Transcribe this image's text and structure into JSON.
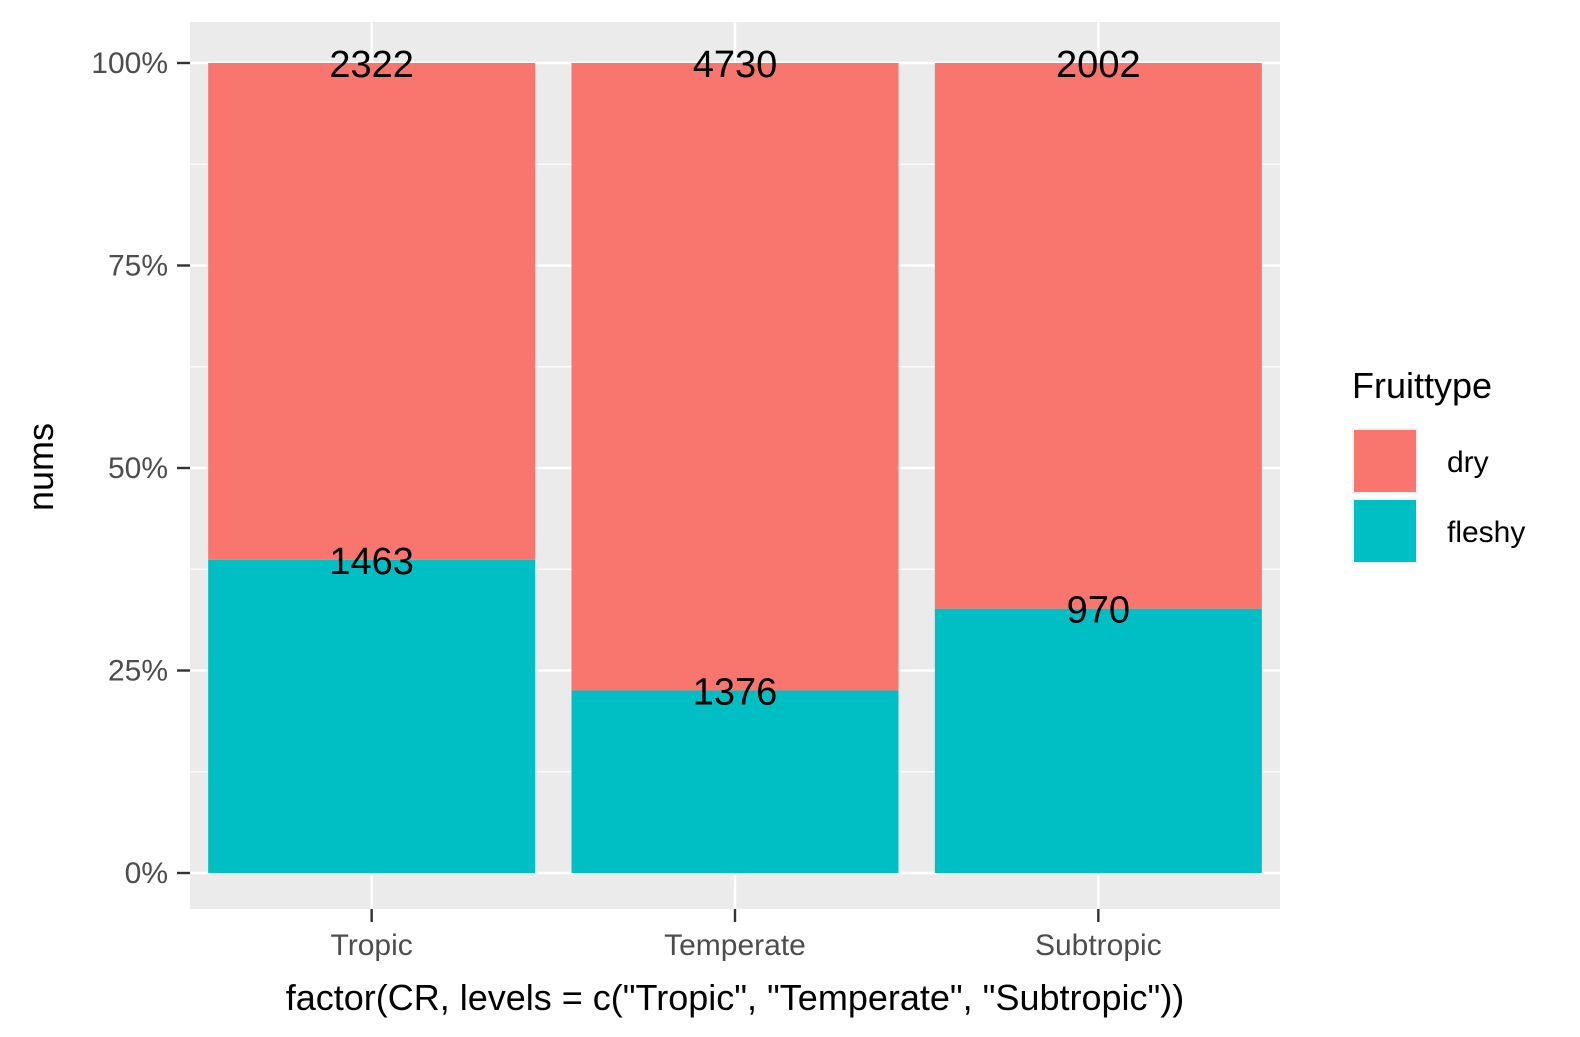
{
  "chart_data": {
    "type": "bar",
    "stacking": "percent",
    "categories": [
      "Tropic",
      "Temperate",
      "Subtropic"
    ],
    "series": [
      {
        "name": "fleshy",
        "values": [
          1463,
          1376,
          970
        ],
        "color": "#00BFC4"
      },
      {
        "name": "dry",
        "values": [
          2322,
          4730,
          2002
        ],
        "color": "#F8766D"
      }
    ],
    "xlabel": "factor(CR, levels = c(\"Tropic\", \"Temperate\", \"Subtropic\"))",
    "ylabel": "nums",
    "ylim": [
      0,
      1
    ],
    "yticks": [
      "0%",
      "25%",
      "50%",
      "75%",
      "100%"
    ],
    "grid": true,
    "panel_background": "#EBEBEB",
    "legend": {
      "title": "Fruittype",
      "position": "right",
      "entries": [
        "dry",
        "fleshy"
      ]
    }
  }
}
